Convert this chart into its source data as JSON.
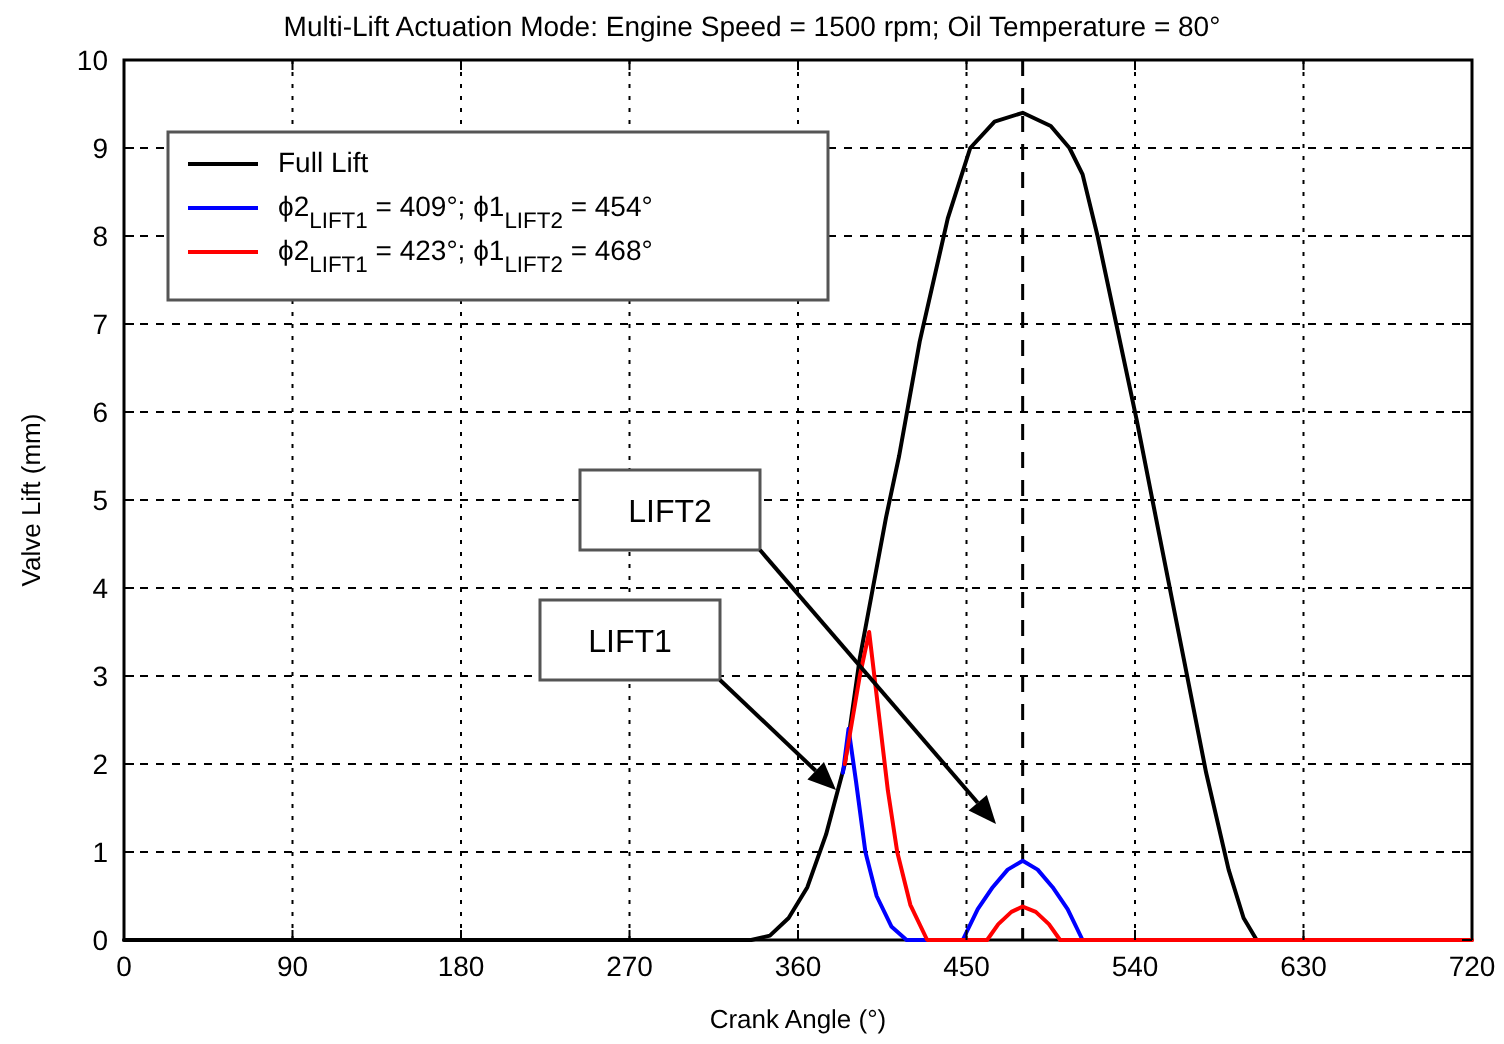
{
  "chart_data": {
    "type": "line",
    "title": "Multi-Lift Actuation Mode: Engine Speed = 1500 rpm; Oil Temperature = 80°",
    "xlabel": "Crank Angle (°)",
    "ylabel": "Valve Lift (mm)",
    "xlim": [
      0,
      720
    ],
    "xticks": [
      0,
      90,
      180,
      270,
      360,
      450,
      540,
      630,
      720
    ],
    "ylim": [
      0,
      10
    ],
    "yticks": [
      0,
      1,
      2,
      3,
      4,
      5,
      6,
      7,
      8,
      9,
      10
    ],
    "grid": true,
    "legend": "top left",
    "line_style": "solid",
    "marker": "none",
    "series": [
      {
        "name": "Full Lift",
        "color": "#000000",
        "x": [
          0,
          335,
          345,
          355,
          365,
          375,
          385,
          393,
          400,
          407,
          414,
          425,
          440,
          452,
          465,
          480,
          495,
          505,
          512,
          520,
          530,
          541,
          553,
          566,
          578,
          590,
          598,
          605
        ],
        "values": [
          0,
          0,
          0.05,
          0.25,
          0.6,
          1.2,
          2.0,
          3.2,
          4.0,
          4.8,
          5.5,
          6.8,
          8.2,
          9.0,
          9.3,
          9.4,
          9.25,
          9.0,
          8.7,
          8.0,
          7.0,
          5.9,
          4.6,
          3.2,
          1.9,
          0.8,
          0.25,
          0
        ]
      },
      {
        "name": "ϕ2$_{LIFT1}$ = 409°; ϕ1$_{LIFT2}$ = 454°",
        "color": "#0000ff",
        "x": [
          384,
          387,
          391,
          396,
          402,
          410,
          418,
          448,
          456,
          464,
          472,
          480,
          488,
          496,
          504,
          512,
          540
        ],
        "values": [
          1.9,
          2.4,
          1.8,
          1.0,
          0.5,
          0.15,
          0,
          0,
          0.35,
          0.6,
          0.8,
          0.9,
          0.8,
          0.6,
          0.35,
          0,
          0
        ]
      },
      {
        "name": "ϕ2$_{LIFT1}$ = 423°; ϕ1$_{LIFT2}$ = 468°",
        "color": "#ff0000",
        "x": [
          385,
          393,
          398,
          403,
          408,
          413,
          420,
          429,
          461,
          467,
          474,
          480,
          487,
          494,
          500,
          720
        ],
        "values": [
          2.0,
          3.0,
          3.5,
          2.6,
          1.7,
          1.0,
          0.4,
          0,
          0,
          0.18,
          0.32,
          0.38,
          0.32,
          0.18,
          0,
          0
        ]
      }
    ],
    "ref_lines": [
      {
        "axis": "x",
        "value": 480,
        "line_style": "dashed",
        "color": "#000000"
      }
    ],
    "annotations": [
      "LIFT1",
      "LIFT2"
    ]
  }
}
